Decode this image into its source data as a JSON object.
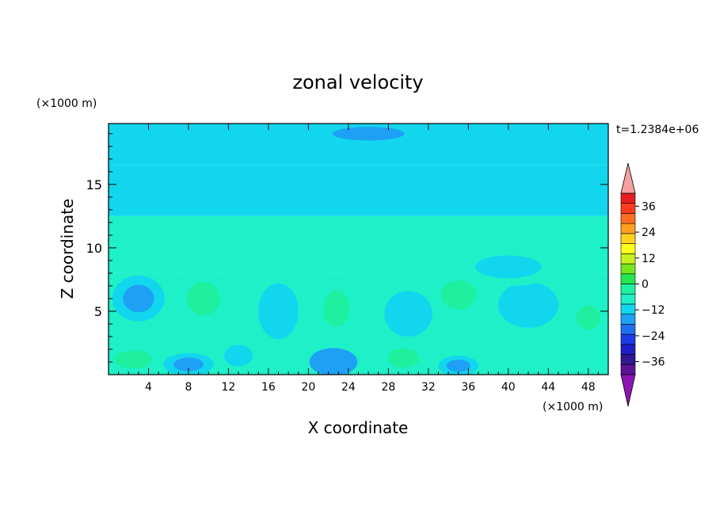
{
  "chart_data": {
    "type": "heatmap",
    "title": "zonal velocity",
    "xlabel": "X coordinate",
    "ylabel": "Z coordinate",
    "x_unit": "(×1000 m)",
    "y_unit": "(×1000 m)",
    "time_label": "t=1.2384e+06",
    "xlim": [
      0,
      50
    ],
    "ylim": [
      0,
      19.8
    ],
    "x_ticks": [
      4,
      8,
      12,
      16,
      20,
      24,
      28,
      32,
      36,
      40,
      44,
      48
    ],
    "x_tick_labels": [
      "4",
      "8",
      "12",
      "16",
      "20",
      "24",
      "28",
      "32",
      "36",
      "40",
      "44",
      "48"
    ],
    "y_ticks": [
      5,
      10,
      15
    ],
    "y_tick_labels": [
      "5",
      "10",
      "15"
    ],
    "colorbar": {
      "range": [
        -42,
        42
      ],
      "step": 6,
      "tick_values": [
        36,
        24,
        12,
        0,
        -12,
        -24,
        -36
      ],
      "tick_labels": [
        "36",
        "24",
        "12",
        "0",
        "−12",
        "−24",
        "−36"
      ],
      "colors": [
        "#5a1496",
        "#30188f",
        "#1e1ec8",
        "#1e3ce6",
        "#1e6ef0",
        "#1ea0f5",
        "#12d6ee",
        "#1ef0c8",
        "#1ef0a0",
        "#24e650",
        "#78e61e",
        "#c8f01e",
        "#ffff1e",
        "#ffd21e",
        "#ffa01e",
        "#ff6e1e",
        "#ff3c1e",
        "#e61e1e"
      ],
      "over_color": "#f5a0a0",
      "under_color": "#8c14b4"
    },
    "field_description_values_ms": {
      "z_layers": [
        {
          "z_range": [
            16.5,
            19.8
          ],
          "u": -6
        },
        {
          "z_range": [
            12.5,
            16.5
          ],
          "u": -3
        },
        {
          "z_range": [
            8,
            12.5
          ],
          "u": 2
        },
        {
          "z_range": [
            0,
            8
          ],
          "u": 0
        }
      ]
    },
    "blobs": [
      {
        "x": 3,
        "z": 6,
        "rx": 2.6,
        "rz": 1.8,
        "u": -8
      },
      {
        "x": 9.5,
        "z": 6,
        "rx": 2.8,
        "rz": 2.2,
        "u": 6
      },
      {
        "x": 2.5,
        "z": 1.2,
        "rx": 3.2,
        "rz": 1.2,
        "u": 7
      },
      {
        "x": 8,
        "z": 0.8,
        "rx": 2.5,
        "rz": 0.9,
        "u": -9
      },
      {
        "x": 13,
        "z": 1.5,
        "rx": 2.4,
        "rz": 1.4,
        "u": -4
      },
      {
        "x": 17,
        "z": 5,
        "rx": 2.0,
        "rz": 2.2,
        "u": -5
      },
      {
        "x": 22.8,
        "z": 5.2,
        "rx": 2.2,
        "rz": 2.4,
        "u": 8
      },
      {
        "x": 22.5,
        "z": 1.0,
        "rx": 2.4,
        "rz": 1.1,
        "u": -12
      },
      {
        "x": 29.5,
        "z": 1.3,
        "rx": 2.6,
        "rz": 1.3,
        "u": 6
      },
      {
        "x": 30,
        "z": 4.8,
        "rx": 2.4,
        "rz": 1.8,
        "u": -6
      },
      {
        "x": 35,
        "z": 6.3,
        "rx": 3.0,
        "rz": 1.9,
        "u": 7
      },
      {
        "x": 35,
        "z": 0.7,
        "rx": 2.0,
        "rz": 0.8,
        "u": -10
      },
      {
        "x": 42,
        "z": 1.3,
        "rx": 3.2,
        "rz": 1.3,
        "u": 5
      },
      {
        "x": 42,
        "z": 5.5,
        "rx": 3.0,
        "rz": 1.8,
        "u": -5
      },
      {
        "x": 48,
        "z": 4.5,
        "rx": 2.0,
        "rz": 1.6,
        "u": 6
      },
      {
        "x": 26,
        "z": 19,
        "rx": 6.0,
        "rz": 0.9,
        "u": -10
      },
      {
        "x": 40,
        "z": 8.5,
        "rx": 5.5,
        "rz": 1.5,
        "u": -3
      }
    ]
  }
}
